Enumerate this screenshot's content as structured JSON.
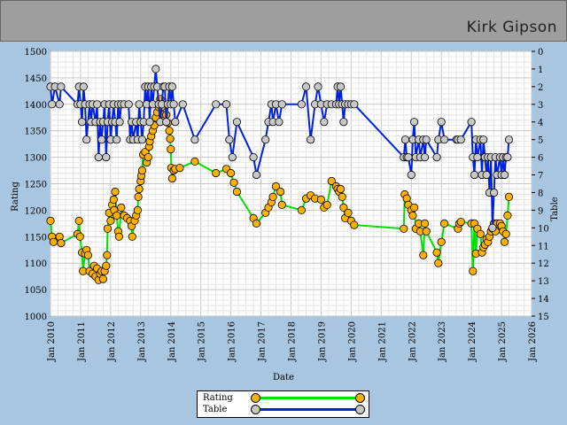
{
  "header": {
    "player_name": "Kirk Gipson"
  },
  "chart_data": {
    "type": "line",
    "title": "Kirk Gipson",
    "xlabel": "Date",
    "ylabel_left": "Rating",
    "ylabel_right": "Table",
    "x_range": [
      2010,
      2026
    ],
    "y_left_range": [
      1000,
      1500
    ],
    "y_right_range": [
      0,
      15
    ],
    "x_ticks": [
      "Jan 2010",
      "Jan 2011",
      "Jan 2012",
      "Jan 2013",
      "Jan 2014",
      "Jan 2015",
      "Jan 2016",
      "Jan 2017",
      "Jan 2018",
      "Jan 2019",
      "Jan 2020",
      "Jan 2021",
      "Jan 2022",
      "Jan 2023",
      "Jan 2024",
      "Jan 2025",
      "Jan 2026"
    ],
    "y_left_ticks": [
      "1000",
      "1050",
      "1100",
      "1150",
      "1200",
      "1250",
      "1300",
      "1350",
      "1400",
      "1450",
      "1500"
    ],
    "y_right_ticks": [
      "0",
      "1",
      "2",
      "3",
      "4",
      "5",
      "6",
      "7",
      "8",
      "9",
      "10",
      "11",
      "12",
      "13",
      "14",
      "15"
    ],
    "grid": true,
    "legend_position": "bottom-center",
    "series": [
      {
        "name": "Rating",
        "axis": "left",
        "line_color": "#00e000",
        "marker_color": "#ffb000",
        "points": [
          [
            2010.0,
            1180
          ],
          [
            2010.05,
            1150
          ],
          [
            2010.1,
            1140
          ],
          [
            2010.3,
            1150
          ],
          [
            2010.35,
            1138
          ],
          [
            2010.9,
            1155
          ],
          [
            2010.95,
            1180
          ],
          [
            2010.98,
            1150
          ],
          [
            2011.05,
            1120
          ],
          [
            2011.08,
            1085
          ],
          [
            2011.15,
            1118
          ],
          [
            2011.2,
            1125
          ],
          [
            2011.25,
            1115
          ],
          [
            2011.3,
            1085
          ],
          [
            2011.4,
            1080
          ],
          [
            2011.45,
            1095
          ],
          [
            2011.5,
            1075
          ],
          [
            2011.55,
            1090
          ],
          [
            2011.6,
            1068
          ],
          [
            2011.65,
            1080
          ],
          [
            2011.7,
            1085
          ],
          [
            2011.75,
            1070
          ],
          [
            2011.8,
            1085
          ],
          [
            2011.85,
            1095
          ],
          [
            2011.88,
            1115
          ],
          [
            2011.9,
            1165
          ],
          [
            2011.95,
            1195
          ],
          [
            2012.0,
            1180
          ],
          [
            2012.05,
            1210
          ],
          [
            2012.1,
            1220
          ],
          [
            2012.12,
            1200
          ],
          [
            2012.15,
            1235
          ],
          [
            2012.2,
            1190
          ],
          [
            2012.25,
            1160
          ],
          [
            2012.28,
            1150
          ],
          [
            2012.35,
            1205
          ],
          [
            2012.45,
            1190
          ],
          [
            2012.55,
            1185
          ],
          [
            2012.65,
            1180
          ],
          [
            2012.7,
            1170
          ],
          [
            2012.72,
            1150
          ],
          [
            2012.8,
            1180
          ],
          [
            2012.85,
            1190
          ],
          [
            2012.9,
            1200
          ],
          [
            2012.92,
            1225
          ],
          [
            2012.95,
            1240
          ],
          [
            2013.0,
            1255
          ],
          [
            2013.02,
            1265
          ],
          [
            2013.05,
            1275
          ],
          [
            2013.08,
            1305
          ],
          [
            2013.15,
            1310
          ],
          [
            2013.2,
            1290
          ],
          [
            2013.25,
            1300
          ],
          [
            2013.28,
            1320
          ],
          [
            2013.3,
            1330
          ],
          [
            2013.35,
            1340
          ],
          [
            2013.4,
            1350
          ],
          [
            2013.45,
            1360
          ],
          [
            2013.5,
            1375
          ],
          [
            2013.55,
            1385
          ],
          [
            2013.6,
            1395
          ],
          [
            2013.65,
            1410
          ],
          [
            2013.7,
            1395
          ],
          [
            2013.75,
            1380
          ],
          [
            2013.8,
            1370
          ],
          [
            2013.85,
            1380
          ],
          [
            2013.9,
            1365
          ],
          [
            2013.95,
            1350
          ],
          [
            2013.98,
            1335
          ],
          [
            2014.0,
            1315
          ],
          [
            2014.02,
            1280
          ],
          [
            2014.05,
            1260
          ],
          [
            2014.1,
            1275
          ],
          [
            2014.15,
            1278
          ],
          [
            2014.3,
            1280
          ],
          [
            2014.8,
            1292
          ],
          [
            2015.5,
            1270
          ],
          [
            2015.85,
            1278
          ],
          [
            2016.0,
            1270
          ],
          [
            2016.1,
            1252
          ],
          [
            2016.2,
            1235
          ],
          [
            2016.75,
            1185
          ],
          [
            2016.85,
            1175
          ],
          [
            2017.15,
            1195
          ],
          [
            2017.25,
            1205
          ],
          [
            2017.35,
            1215
          ],
          [
            2017.4,
            1225
          ],
          [
            2017.5,
            1245
          ],
          [
            2017.65,
            1235
          ],
          [
            2017.7,
            1210
          ],
          [
            2018.35,
            1200
          ],
          [
            2018.5,
            1222
          ],
          [
            2018.65,
            1228
          ],
          [
            2018.8,
            1222
          ],
          [
            2019.0,
            1220
          ],
          [
            2019.1,
            1205
          ],
          [
            2019.2,
            1210
          ],
          [
            2019.35,
            1255
          ],
          [
            2019.5,
            1245
          ],
          [
            2019.55,
            1240
          ],
          [
            2019.6,
            1235
          ],
          [
            2019.65,
            1240
          ],
          [
            2019.7,
            1225
          ],
          [
            2019.75,
            1205
          ],
          [
            2019.8,
            1185
          ],
          [
            2019.9,
            1195
          ],
          [
            2020.0,
            1180
          ],
          [
            2020.1,
            1172
          ],
          [
            2021.75,
            1165
          ],
          [
            2021.78,
            1230
          ],
          [
            2021.85,
            1222
          ],
          [
            2021.9,
            1210
          ],
          [
            2022.0,
            1200
          ],
          [
            2022.05,
            1190
          ],
          [
            2022.1,
            1205
          ],
          [
            2022.15,
            1165
          ],
          [
            2022.25,
            1175
          ],
          [
            2022.3,
            1160
          ],
          [
            2022.4,
            1115
          ],
          [
            2022.45,
            1175
          ],
          [
            2022.5,
            1160
          ],
          [
            2022.85,
            1120
          ],
          [
            2022.9,
            1100
          ],
          [
            2023.0,
            1140
          ],
          [
            2023.1,
            1175
          ],
          [
            2023.55,
            1165
          ],
          [
            2023.6,
            1175
          ],
          [
            2023.65,
            1178
          ],
          [
            2024.0,
            1175
          ],
          [
            2024.05,
            1085
          ],
          [
            2024.1,
            1175
          ],
          [
            2024.15,
            1118
          ],
          [
            2024.2,
            1165
          ],
          [
            2024.3,
            1155
          ],
          [
            2024.35,
            1120
          ],
          [
            2024.4,
            1130
          ],
          [
            2024.45,
            1135
          ],
          [
            2024.5,
            1145
          ],
          [
            2024.55,
            1140
          ],
          [
            2024.6,
            1150
          ],
          [
            2024.65,
            1160
          ],
          [
            2024.7,
            1165
          ],
          [
            2024.75,
            1175
          ],
          [
            2024.8,
            1160
          ],
          [
            2024.85,
            1175
          ],
          [
            2024.95,
            1175
          ],
          [
            2025.0,
            1170
          ],
          [
            2025.05,
            1160
          ],
          [
            2025.1,
            1140
          ],
          [
            2025.15,
            1155
          ],
          [
            2025.2,
            1190
          ],
          [
            2025.25,
            1225
          ]
        ]
      },
      {
        "name": "Table",
        "axis": "right",
        "line_color": "#0022dd",
        "marker_color": "#c8c8c8",
        "points": [
          [
            2010.0,
            2
          ],
          [
            2010.05,
            3
          ],
          [
            2010.15,
            2
          ],
          [
            2010.3,
            3
          ],
          [
            2010.35,
            2
          ],
          [
            2010.9,
            3
          ],
          [
            2010.95,
            2
          ],
          [
            2011.0,
            3
          ],
          [
            2011.05,
            4
          ],
          [
            2011.1,
            2
          ],
          [
            2011.15,
            3
          ],
          [
            2011.2,
            5
          ],
          [
            2011.3,
            3
          ],
          [
            2011.35,
            4
          ],
          [
            2011.4,
            3
          ],
          [
            2011.5,
            4
          ],
          [
            2011.55,
            3
          ],
          [
            2011.6,
            6
          ],
          [
            2011.65,
            4
          ],
          [
            2011.7,
            5
          ],
          [
            2011.75,
            4
          ],
          [
            2011.8,
            3
          ],
          [
            2011.85,
            6
          ],
          [
            2011.9,
            4
          ],
          [
            2011.95,
            3
          ],
          [
            2012.0,
            5
          ],
          [
            2012.05,
            4
          ],
          [
            2012.1,
            3
          ],
          [
            2012.15,
            4
          ],
          [
            2012.2,
            5
          ],
          [
            2012.25,
            3
          ],
          [
            2012.3,
            4
          ],
          [
            2012.35,
            3
          ],
          [
            2012.45,
            3
          ],
          [
            2012.6,
            3
          ],
          [
            2012.65,
            5
          ],
          [
            2012.7,
            4
          ],
          [
            2012.75,
            5
          ],
          [
            2012.85,
            4
          ],
          [
            2012.9,
            5
          ],
          [
            2012.95,
            3
          ],
          [
            2013.0,
            4
          ],
          [
            2013.05,
            5
          ],
          [
            2013.1,
            4
          ],
          [
            2013.15,
            2
          ],
          [
            2013.2,
            3
          ],
          [
            2013.25,
            2
          ],
          [
            2013.3,
            4
          ],
          [
            2013.35,
            2
          ],
          [
            2013.4,
            3
          ],
          [
            2013.45,
            2
          ],
          [
            2013.5,
            1
          ],
          [
            2013.55,
            2
          ],
          [
            2013.6,
            3
          ],
          [
            2013.65,
            4
          ],
          [
            2013.7,
            3
          ],
          [
            2013.75,
            2
          ],
          [
            2013.8,
            2
          ],
          [
            2013.85,
            4
          ],
          [
            2013.9,
            3
          ],
          [
            2013.95,
            2
          ],
          [
            2014.0,
            3
          ],
          [
            2014.05,
            2
          ],
          [
            2014.1,
            3
          ],
          [
            2014.15,
            4
          ],
          [
            2014.4,
            3
          ],
          [
            2014.8,
            5
          ],
          [
            2015.5,
            3
          ],
          [
            2015.85,
            3
          ],
          [
            2015.95,
            5
          ],
          [
            2016.05,
            6
          ],
          [
            2016.2,
            4
          ],
          [
            2016.75,
            6
          ],
          [
            2016.85,
            7
          ],
          [
            2017.15,
            5
          ],
          [
            2017.25,
            4
          ],
          [
            2017.35,
            3
          ],
          [
            2017.4,
            4
          ],
          [
            2017.5,
            3
          ],
          [
            2017.6,
            4
          ],
          [
            2017.7,
            3
          ],
          [
            2018.35,
            3
          ],
          [
            2018.5,
            2
          ],
          [
            2018.65,
            5
          ],
          [
            2018.8,
            3
          ],
          [
            2018.9,
            2
          ],
          [
            2019.0,
            3
          ],
          [
            2019.1,
            4
          ],
          [
            2019.2,
            3
          ],
          [
            2019.35,
            3
          ],
          [
            2019.5,
            3
          ],
          [
            2019.55,
            2
          ],
          [
            2019.6,
            3
          ],
          [
            2019.65,
            2
          ],
          [
            2019.7,
            3
          ],
          [
            2019.75,
            4
          ],
          [
            2019.8,
            3
          ],
          [
            2019.9,
            3
          ],
          [
            2020.0,
            3
          ],
          [
            2020.1,
            3
          ],
          [
            2021.75,
            6
          ],
          [
            2021.8,
            5
          ],
          [
            2021.85,
            6
          ],
          [
            2021.9,
            6
          ],
          [
            2022.0,
            7
          ],
          [
            2022.05,
            5
          ],
          [
            2022.1,
            4
          ],
          [
            2022.15,
            6
          ],
          [
            2022.25,
            5
          ],
          [
            2022.3,
            6
          ],
          [
            2022.4,
            5
          ],
          [
            2022.45,
            6
          ],
          [
            2022.5,
            5
          ],
          [
            2022.85,
            6
          ],
          [
            2022.9,
            5
          ],
          [
            2023.0,
            4
          ],
          [
            2023.1,
            5
          ],
          [
            2023.5,
            5
          ],
          [
            2023.55,
            5
          ],
          [
            2023.65,
            5
          ],
          [
            2024.0,
            4
          ],
          [
            2024.05,
            6
          ],
          [
            2024.1,
            7
          ],
          [
            2024.15,
            5
          ],
          [
            2024.2,
            6
          ],
          [
            2024.3,
            5
          ],
          [
            2024.35,
            7
          ],
          [
            2024.4,
            5
          ],
          [
            2024.45,
            6
          ],
          [
            2024.5,
            7
          ],
          [
            2024.55,
            6
          ],
          [
            2024.6,
            8
          ],
          [
            2024.65,
            6
          ],
          [
            2024.7,
            10
          ],
          [
            2024.75,
            8
          ],
          [
            2024.8,
            6
          ],
          [
            2024.85,
            7
          ],
          [
            2024.95,
            6
          ],
          [
            2025.0,
            7
          ],
          [
            2025.05,
            6
          ],
          [
            2025.1,
            7
          ],
          [
            2025.15,
            6
          ],
          [
            2025.2,
            6
          ],
          [
            2025.25,
            5
          ]
        ]
      }
    ]
  },
  "legend": {
    "items": [
      {
        "label": "Rating",
        "line_color": "#00e000",
        "marker_color": "#ffb000"
      },
      {
        "label": "Table",
        "line_color": "#0022dd",
        "marker_color": "#c8c8c8"
      }
    ]
  }
}
